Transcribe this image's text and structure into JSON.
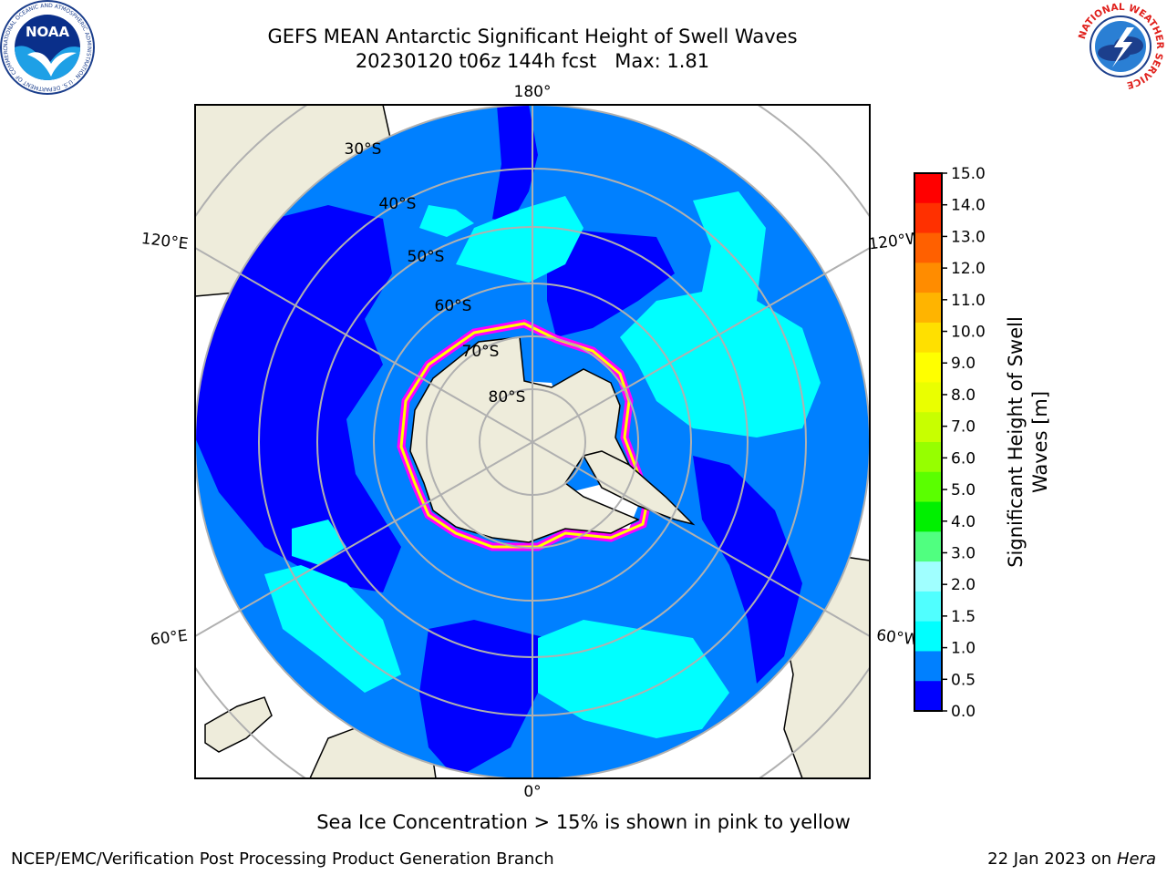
{
  "header": {
    "title_line1": "GEFS MEAN Antarctic Significant Height of Swell Waves",
    "title_line2": "20230120 t06z 144h fcst   Max: 1.81"
  },
  "logos": {
    "left": {
      "name": "noaa-logo",
      "text": "NOAA",
      "ring_text": "NATIONAL OCEANIC AND ATMOSPHERIC ADMINISTRATION · U.S. DEPARTMENT OF COMMERCE"
    },
    "right": {
      "name": "nws-logo",
      "ring_text": "NATIONAL WEATHER SERVICE"
    }
  },
  "map": {
    "projection": "south-polar-stereographic",
    "longitude_labels": [
      "180°",
      "120°E",
      "120°W",
      "60°E",
      "60°W",
      "0°"
    ],
    "latitude_labels": [
      "30°S",
      "40°S",
      "50°S",
      "60°S",
      "70°S",
      "80°S"
    ],
    "colors": {
      "land": "#eeecdb",
      "ocean_dark": "#0000ff",
      "ocean_mid": "#0080ff",
      "ocean_light": "#00ffff",
      "ice_edge": "#ff00ff",
      "ice_inner": "#ffff00",
      "gridline": "#b0b0b0"
    }
  },
  "colorbar": {
    "label_line1": "Significant Height of Swell",
    "label_line2": "Waves [m]",
    "ticks": [
      "15.0",
      "14.0",
      "13.0",
      "12.0",
      "11.0",
      "10.0",
      "9.0",
      "8.0",
      "7.0",
      "6.0",
      "5.0",
      "4.0",
      "3.0",
      "2.0",
      "1.5",
      "1.0",
      "0.5",
      "0.0"
    ],
    "band_colors_top_to_bottom": [
      "#ff0000",
      "#ff3000",
      "#ff6000",
      "#ff8c00",
      "#ffb400",
      "#ffe000",
      "#ffff00",
      "#eaff00",
      "#c8ff00",
      "#96ff00",
      "#5aff00",
      "#00f000",
      "#50ff80",
      "#a0ffff",
      "#50ffff",
      "#00ffff",
      "#0080ff",
      "#0000ff"
    ]
  },
  "footer": {
    "note": "Sea Ice Concentration > 15% is shown in pink to yellow",
    "credit_left": "NCEP/EMC/Verification Post Processing Product Generation Branch",
    "credit_date": "22 Jan 2023 on ",
    "credit_host": "Hera"
  }
}
